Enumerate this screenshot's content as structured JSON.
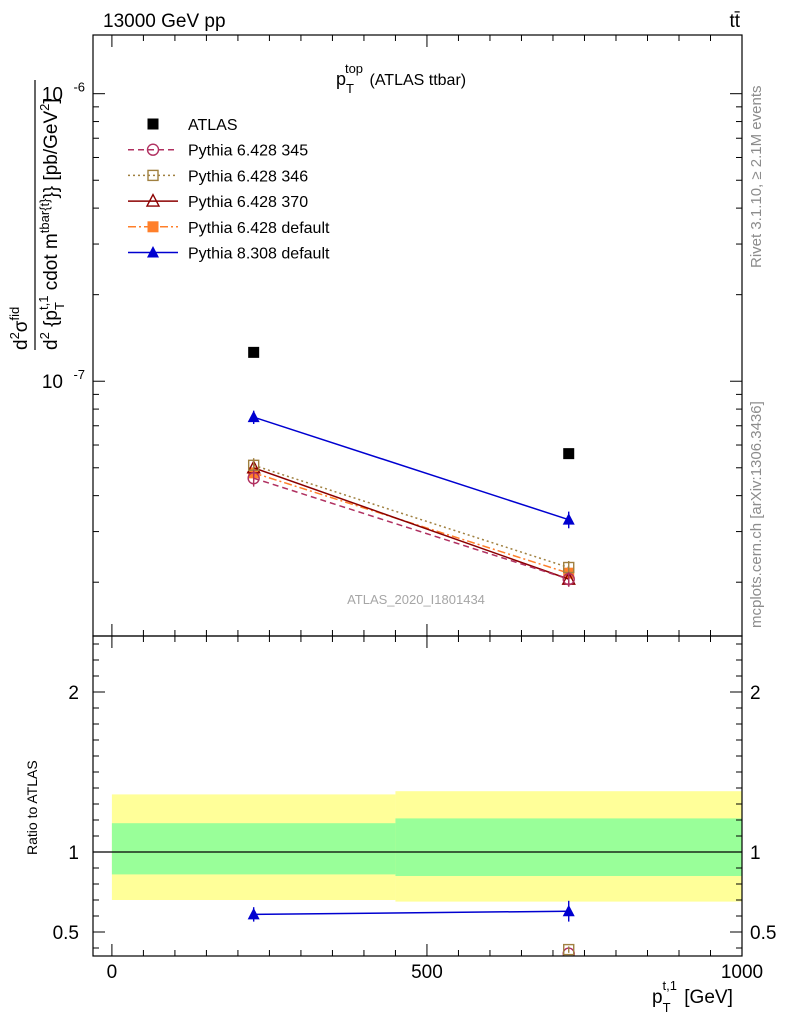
{
  "header": {
    "left": "13000 GeV pp",
    "right": "tt̄"
  },
  "side_labels": {
    "rivet": "Rivet 3.1.10, ≥ 2.1M events",
    "mcplots": "mcplots.cern.ch [arXiv:1306.3436]"
  },
  "chart_data": [
    {
      "type": "scatter",
      "panel": "main",
      "title": "p_T^top (ATLAS ttbar)",
      "title_main": "p",
      "title_sub": "T",
      "title_sup": "top",
      "title_rest": " (ATLAS ttbar)",
      "ylabel": "d^2σ^{fid} / d^2{p_T^{t,1} cdot m^{tbar{t}}} [pb/GeV^2]",
      "yscale": "log",
      "ylim": [
        1.3e-08,
        1.6e-06
      ],
      "xlim": [
        -30,
        1000
      ],
      "ytick_labels": [
        "10^-7",
        "10^-6"
      ],
      "watermark": "ATLAS_2020_I1801434",
      "legend_position": "top-left",
      "series": [
        {
          "name": "ATLAS",
          "color": "#000000",
          "marker": "square-filled",
          "line": "none",
          "x": [
            225,
            725
          ],
          "y": [
            1.26e-07,
            5.6e-08
          ],
          "yerr": [
            0,
            0
          ]
        },
        {
          "name": "Pythia 6.428 345",
          "color": "#b03060",
          "marker": "circle-open",
          "line": "dashed",
          "x": [
            225,
            725
          ],
          "y": [
            4.6e-08,
            2.05e-08
          ],
          "yerr": [
            3e-09,
            1.2e-09
          ]
        },
        {
          "name": "Pythia 6.428 346",
          "color": "#a08040",
          "marker": "square-open",
          "line": "dotted",
          "x": [
            225,
            725
          ],
          "y": [
            5.1e-08,
            2.25e-08
          ],
          "yerr": [
            3e-09,
            1.2e-09
          ]
        },
        {
          "name": "Pythia 6.428 370",
          "color": "#8b0000",
          "marker": "triangle-open",
          "line": "solid",
          "x": [
            225,
            725
          ],
          "y": [
            5e-08,
            2.05e-08
          ],
          "yerr": [
            3e-09,
            1.2e-09
          ]
        },
        {
          "name": "Pythia 6.428 default",
          "color": "#ff7f2a",
          "marker": "square-filled",
          "line": "dashdot",
          "x": [
            225,
            725
          ],
          "y": [
            4.8e-08,
            2.15e-08
          ],
          "yerr": [
            3e-09,
            1.2e-09
          ]
        },
        {
          "name": "Pythia 8.308 default",
          "color": "#0000d0",
          "marker": "triangle-filled",
          "line": "solid",
          "x": [
            225,
            725
          ],
          "y": [
            7.5e-08,
            3.3e-08
          ],
          "yerr": [
            4e-09,
            2.2e-09
          ]
        }
      ]
    },
    {
      "type": "scatter",
      "panel": "ratio",
      "ylabel": "Ratio to ATLAS",
      "xlabel": "p_T^{t,1} [GeV]",
      "xlabel_main": "p",
      "xlabel_sub": "T",
      "xlabel_sup": "t,1",
      "xlabel_rest": " [GeV]",
      "xlim": [
        -30,
        1000
      ],
      "ylim": [
        0.35,
        2.35
      ],
      "ytick_labels": [
        "0.5",
        "1",
        "2"
      ],
      "xtick_labels": [
        "0",
        "500",
        "1000"
      ],
      "bands": [
        {
          "x": [
            0,
            450
          ],
          "stat": [
            0.86,
            1.18
          ],
          "total": [
            0.7,
            1.36
          ]
        },
        {
          "x": [
            450,
            1000
          ],
          "stat": [
            0.85,
            1.21
          ],
          "total": [
            0.69,
            1.38
          ]
        }
      ],
      "series": [
        {
          "name": "Pythia 8.308 default",
          "color": "#0000d0",
          "marker": "triangle-filled",
          "line": "solid",
          "x": [
            225,
            725
          ],
          "y": [
            0.61,
            0.63
          ],
          "yerr": [
            0.045,
            0.065
          ]
        },
        {
          "name": "Pythia 6.428 345",
          "color": "#b03060",
          "marker": "circle-open",
          "line": "dashed",
          "x": [
            725
          ],
          "y": [
            0.365
          ],
          "yerr": [
            0.0
          ]
        },
        {
          "name": "Pythia 6.428 346",
          "color": "#a08040",
          "marker": "square-open",
          "line": "dotted",
          "x": [
            725
          ],
          "y": [
            0.39
          ],
          "yerr": [
            0.02
          ]
        }
      ]
    }
  ]
}
